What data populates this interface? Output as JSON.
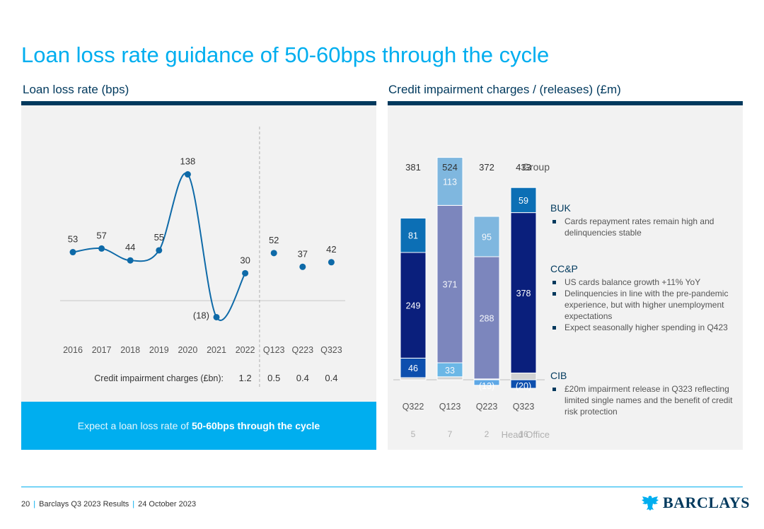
{
  "page": {
    "title": "Loan loss rate guidance of 50-60bps through the cycle",
    "callout_prefix": "Expect a loan loss rate of",
    "callout_bold": "50-60bps through the cycle"
  },
  "colors": {
    "accent": "#00aeef",
    "navy": "#00395d",
    "line": "#0e6aa8",
    "buk": "#0c6fb5",
    "ccp": "#0a1f7c",
    "cib_dark": "#0d4fae",
    "cib_light": "#6bb7e6",
    "light_blue": "#7fb7df",
    "periwinkle": "#7c86bd",
    "head_office": "#d2d2d2",
    "release": "#5fa8e6"
  },
  "chart_data": [
    {
      "type": "line",
      "title": "Loan loss rate (bps)",
      "categories": [
        "2016",
        "2017",
        "2018",
        "2019",
        "2020",
        "2021",
        "2022",
        "Q123",
        "Q223",
        "Q323"
      ],
      "values": [
        53,
        57,
        44,
        55,
        138,
        -18,
        30,
        52,
        37,
        42
      ],
      "value_labels": [
        "53",
        "57",
        "44",
        "55",
        "138",
        "(18)",
        "30",
        "52",
        "37",
        "42"
      ],
      "connected_through": "2022",
      "ylim": [
        -30,
        150
      ],
      "baseline": 0,
      "credit_impairment_label": "Credit impairment charges (£bn):",
      "credit_impairment_values": [
        "1.2",
        "0.5",
        "0.4",
        "0.4"
      ],
      "credit_impairment_starts_at": "2022"
    },
    {
      "type": "bar",
      "stacked": true,
      "title": "Credit impairment charges / (releases) (£m)",
      "categories": [
        "Q322",
        "Q123",
        "Q223",
        "Q323"
      ],
      "group_totals": [
        "381",
        "524",
        "372",
        "433"
      ],
      "group_label": "Group",
      "ylim": [
        -30,
        540
      ],
      "segments": [
        [
          {
            "value": 5,
            "label": "",
            "color": "#d2d2d2"
          },
          {
            "value": 46,
            "label": "46",
            "color": "#0d4fae"
          },
          {
            "value": 249,
            "label": "249",
            "color": "#0a1f7c"
          },
          {
            "value": 81,
            "label": "81",
            "color": "#0c6fb5"
          }
        ],
        [
          {
            "value": 7,
            "label": "",
            "color": "#d2d2d2"
          },
          {
            "value": 33,
            "label": "33",
            "color": "#6bb7e6"
          },
          {
            "value": 371,
            "label": "371",
            "color": "#7c86bd"
          },
          {
            "value": 113,
            "label": "113",
            "color": "#7fb7df"
          }
        ],
        [
          {
            "value": -13,
            "label": "(13)",
            "color": "#5fa8e6"
          },
          {
            "value": 2,
            "label": "",
            "color": "#d2d2d2"
          },
          {
            "value": 288,
            "label": "288",
            "color": "#7c86bd"
          },
          {
            "value": 95,
            "label": "95",
            "color": "#7fb7df"
          }
        ],
        [
          {
            "value": -20,
            "label": "(20)",
            "color": "#0d4fae"
          },
          {
            "value": 16,
            "label": "",
            "color": "#d2d2d2"
          },
          {
            "value": 378,
            "label": "378",
            "color": "#0a1f7c"
          },
          {
            "value": 59,
            "label": "59",
            "color": "#0c6fb5"
          }
        ]
      ],
      "head_office_values": [
        "5",
        "7",
        "2",
        "16"
      ],
      "head_office_label": "Head Office"
    }
  ],
  "notes": {
    "buk": {
      "title": "BUK",
      "items": [
        "Cards repayment rates remain high and delinquencies stable"
      ]
    },
    "ccp": {
      "title": "CC&P",
      "items": [
        "US cards balance growth +11% YoY",
        "Delinquencies in line with the pre-pandemic experience, but with higher unemployment expectations",
        "Expect seasonally higher spending in Q423"
      ]
    },
    "cib": {
      "title": "CIB",
      "items": [
        "£20m impairment release in Q323 reflecting limited single names and the benefit of credit risk protection"
      ]
    }
  },
  "footer": {
    "page_number": "20",
    "report": "Barclays Q3 2023 Results",
    "date": "24 October 2023",
    "logo_text": "BARCLAYS",
    "logo_icon": "eagle-icon"
  }
}
